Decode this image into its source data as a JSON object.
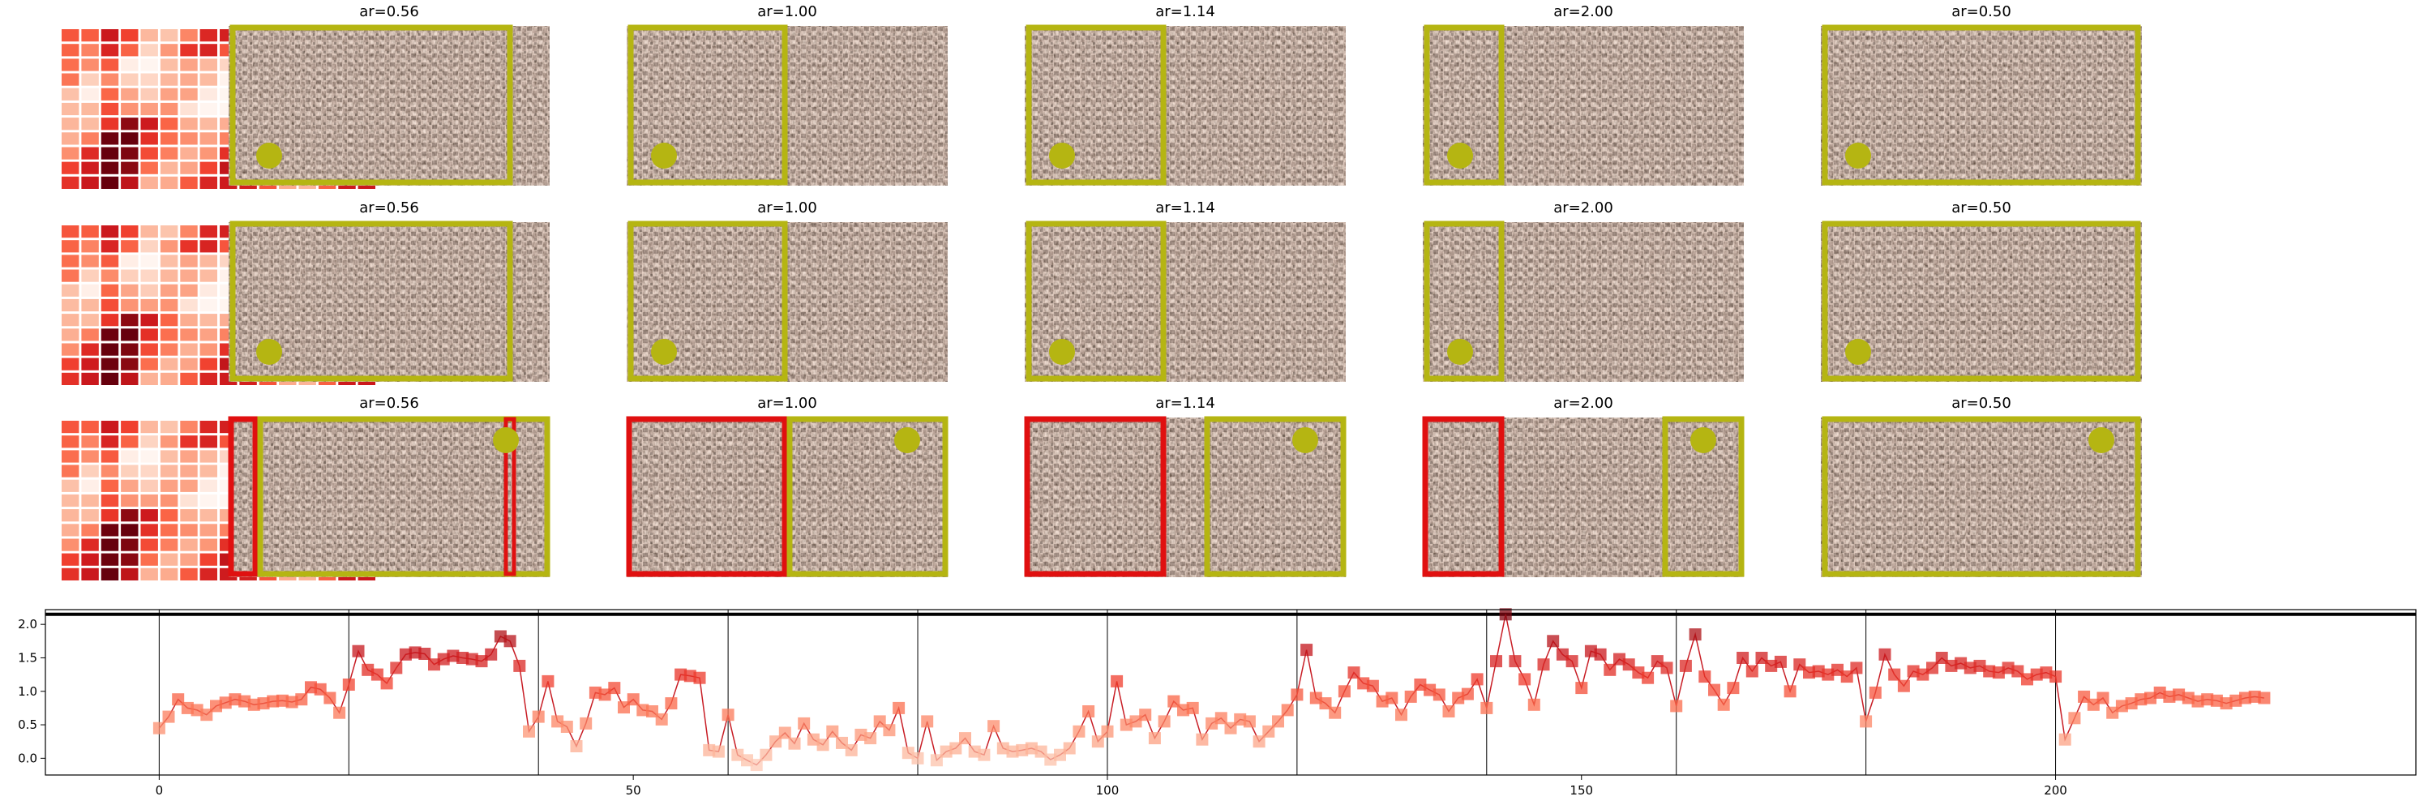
{
  "colors": {
    "box_kept": "#b5b512",
    "box_removed": "#e01010",
    "heat_low": "#fff5f0",
    "heat_high": "#67000d",
    "line": "#c81d25",
    "photo_bg": "#9c8c86"
  },
  "panel_titles": [
    "ar=0.56",
    "ar=1.00",
    "ar=1.14",
    "ar=2.00",
    "ar=0.50"
  ],
  "heatmap": {
    "rows": 11,
    "cols": 16,
    "colormap": "Reds"
  },
  "chart_data": {
    "type": "line",
    "title": "",
    "xlabel": "",
    "ylabel": "",
    "xlim": [
      -12,
      238
    ],
    "ylim": [
      -0.25,
      2.22
    ],
    "xticks": [
      0,
      50,
      100,
      150,
      200
    ],
    "yticks": [
      0.0,
      0.5,
      1.0,
      1.5,
      2.0
    ],
    "hline_y": 2.15,
    "vlines": [
      0,
      20,
      40,
      60,
      80,
      100,
      120,
      140,
      160,
      180,
      200
    ],
    "grid": false,
    "legend": "none",
    "x_start": 0,
    "marker": "square",
    "y": [
      0.45,
      0.62,
      0.88,
      0.75,
      0.72,
      0.65,
      0.78,
      0.83,
      0.88,
      0.85,
      0.8,
      0.82,
      0.85,
      0.86,
      0.84,
      0.88,
      1.06,
      1.03,
      0.9,
      0.68,
      1.1,
      1.6,
      1.32,
      1.25,
      1.12,
      1.35,
      1.55,
      1.58,
      1.56,
      1.4,
      1.48,
      1.53,
      1.5,
      1.48,
      1.45,
      1.55,
      1.82,
      1.75,
      1.38,
      0.4,
      0.62,
      1.15,
      0.55,
      0.47,
      0.18,
      0.52,
      0.98,
      0.95,
      1.05,
      0.76,
      0.88,
      0.72,
      0.7,
      0.58,
      0.82,
      1.25,
      1.23,
      1.2,
      0.12,
      0.1,
      0.65,
      0.05,
      -0.03,
      -0.1,
      0.05,
      0.25,
      0.38,
      0.22,
      0.52,
      0.28,
      0.2,
      0.4,
      0.23,
      0.12,
      0.35,
      0.3,
      0.55,
      0.42,
      0.75,
      0.08,
      0.0,
      0.55,
      -0.03,
      0.1,
      0.15,
      0.3,
      0.1,
      0.05,
      0.48,
      0.15,
      0.1,
      0.12,
      0.15,
      0.1,
      -0.02,
      0.05,
      0.15,
      0.4,
      0.7,
      0.25,
      0.4,
      1.15,
      0.5,
      0.55,
      0.65,
      0.3,
      0.55,
      0.85,
      0.72,
      0.75,
      0.28,
      0.52,
      0.6,
      0.45,
      0.58,
      0.55,
      0.25,
      0.4,
      0.55,
      0.72,
      0.95,
      1.62,
      0.9,
      0.82,
      0.68,
      1.0,
      1.28,
      1.12,
      1.08,
      0.85,
      0.9,
      0.65,
      0.92,
      1.1,
      1.02,
      0.95,
      0.7,
      0.9,
      0.96,
      1.18,
      0.75,
      1.45,
      2.15,
      1.45,
      1.18,
      0.8,
      1.4,
      1.75,
      1.55,
      1.45,
      1.05,
      1.6,
      1.55,
      1.32,
      1.48,
      1.4,
      1.28,
      1.2,
      1.45,
      1.35,
      0.78,
      1.38,
      1.85,
      1.22,
      1.02,
      0.8,
      1.05,
      1.5,
      1.3,
      1.5,
      1.38,
      1.44,
      1.0,
      1.4,
      1.28,
      1.3,
      1.25,
      1.32,
      1.22,
      1.35,
      0.55,
      0.98,
      1.55,
      1.25,
      1.08,
      1.3,
      1.25,
      1.35,
      1.5,
      1.38,
      1.42,
      1.35,
      1.38,
      1.3,
      1.28,
      1.35,
      1.3,
      1.18,
      1.25,
      1.28,
      1.22,
      0.28,
      0.6,
      0.92,
      0.8,
      0.9,
      0.68,
      0.78,
      0.82,
      0.88,
      0.9,
      0.98,
      0.92,
      0.95,
      0.9,
      0.85,
      0.88,
      0.86,
      0.82,
      0.86,
      0.9,
      0.92,
      0.9
    ]
  }
}
